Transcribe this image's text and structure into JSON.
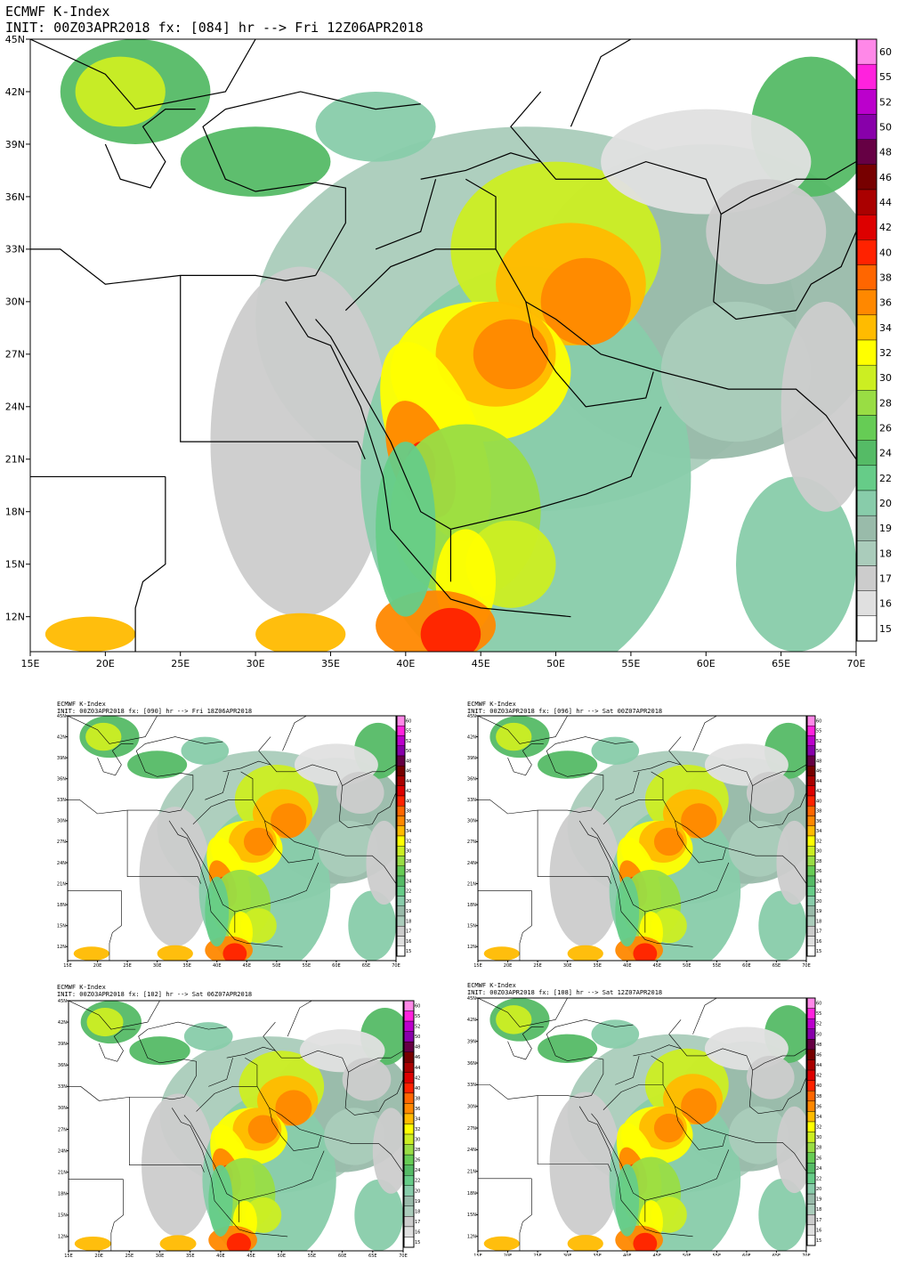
{
  "model_title": "ECMWF K-Index",
  "colorbar": {
    "labels": [
      "60",
      "55",
      "52",
      "50",
      "48",
      "46",
      "44",
      "42",
      "40",
      "38",
      "36",
      "34",
      "32",
      "30",
      "28",
      "26",
      "24",
      "22",
      "20",
      "19",
      "18",
      "17",
      "16",
      "15"
    ],
    "colors": [
      "#ff88e8",
      "#ff22dd",
      "#bb00cc",
      "#8800aa",
      "#660044",
      "#770000",
      "#aa0000",
      "#dd0000",
      "#ff2200",
      "#ff6600",
      "#ff8800",
      "#ffbb00",
      "#ffff00",
      "#ccee22",
      "#99dd44",
      "#66cc55",
      "#55bb66",
      "#66cc88",
      "#88ccaa",
      "#99bbaa",
      "#aaccbb",
      "#cccccc",
      "#e0e0e0",
      "#ffffff"
    ]
  },
  "axes": {
    "lon_labels": [
      "15E",
      "20E",
      "25E",
      "30E",
      "35E",
      "40E",
      "45E",
      "50E",
      "55E",
      "60E",
      "65E",
      "70E"
    ],
    "lat_labels": [
      "45N",
      "42N",
      "39N",
      "36N",
      "33N",
      "30N",
      "27N",
      "24N",
      "21N",
      "18N",
      "15N",
      "12N"
    ]
  },
  "panels": [
    {
      "init": "INIT: 00Z03APR2018 fx: [084] hr --> Fri 12Z06APR2018"
    },
    {
      "init": "INIT: 00Z03APR2018 fx: [090] hr --> Fri 18Z06APR2018"
    },
    {
      "init": "INIT: 00Z03APR2018 fx: [096] hr --> Sat 00Z07APR2018"
    },
    {
      "init": "INIT: 00Z03APR2018 fx: [102] hr --> Sat 06Z07APR2018"
    },
    {
      "init": "INIT: 00Z03APR2018 fx: [108] hr --> Sat 12Z07APR2018"
    }
  ]
}
